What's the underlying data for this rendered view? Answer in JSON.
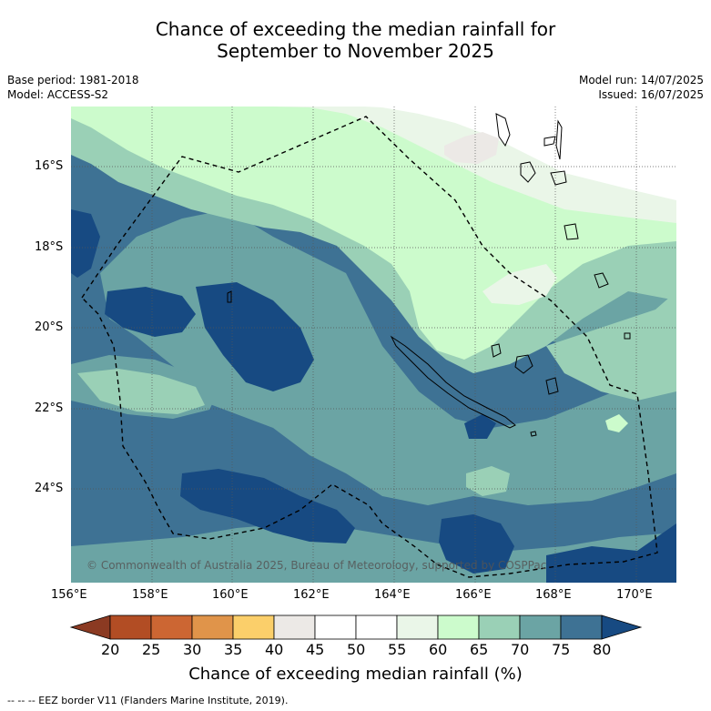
{
  "title_line1": "Chance of exceeding the median rainfall for",
  "title_line2": "September to November 2025",
  "base_period": "Base period: 1981-2018",
  "model": "Model: ACCESS-S2",
  "model_run": "Model run: 14/07/2025",
  "issued": "Issued: 16/07/2025",
  "copyright": "© Commonwealth of Australia 2025, Bureau of Meteorology, supported by COSPPac",
  "lat_labels": [
    "16°S",
    "18°S",
    "20°S",
    "22°S",
    "24°S"
  ],
  "lon_labels": [
    "156°E",
    "158°E",
    "160°E",
    "162°E",
    "164°E",
    "166°E",
    "168°E",
    "170°E"
  ],
  "colorbar": {
    "title": "Chance of exceeding median rainfall (%)",
    "ticks": [
      "20",
      "25",
      "30",
      "35",
      "40",
      "45",
      "50",
      "55",
      "60",
      "65",
      "70",
      "75",
      "80"
    ],
    "colors": [
      "#8b3a22",
      "#b24d24",
      "#cc6633",
      "#e0944a",
      "#fbcf6a",
      "#ece9e6",
      "#ffffff",
      "#ffffff",
      "#eaf6e8",
      "#ccfbcc",
      "#9ad0b6",
      "#6ba4a4",
      "#3e7294",
      "#174a82"
    ]
  },
  "legend_footer": "--  --  -- EEZ border V11 (Flanders Marine Institute, 2019)."
}
